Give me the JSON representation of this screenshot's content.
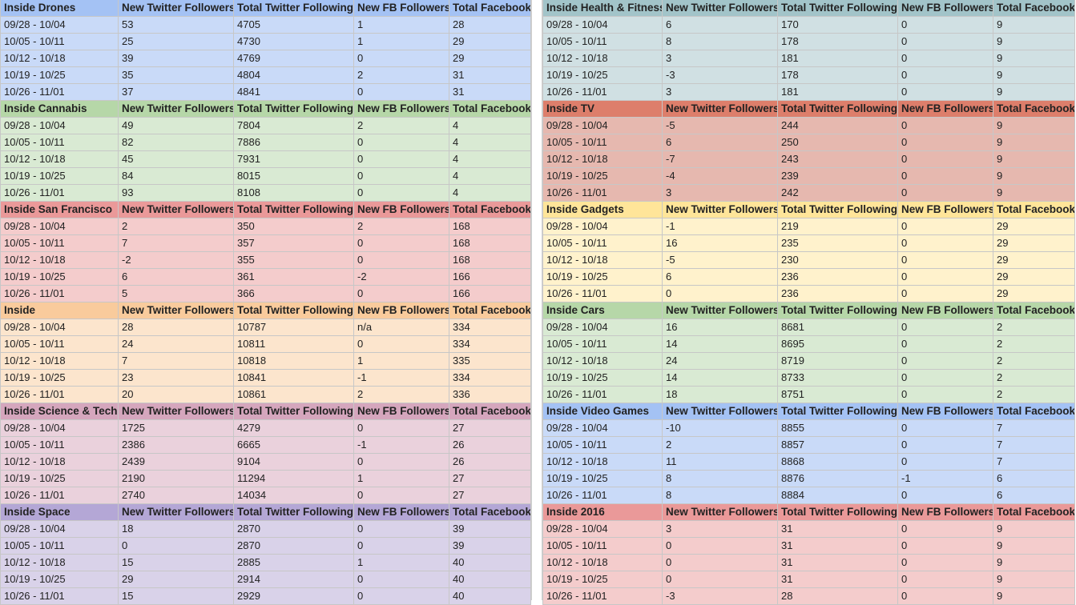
{
  "columns": [
    "New Twitter Followers",
    "Total Twitter Following",
    "New FB Followers",
    "Total Facebook"
  ],
  "left_blocks": [
    {
      "title": "Inside Drones",
      "header_color": "#a4c2f4",
      "row_color": "#c9daf8",
      "rows": [
        [
          "09/28 - 10/04",
          "53",
          "4705",
          "1",
          "28"
        ],
        [
          "10/05 - 10/11",
          "25",
          "4730",
          "1",
          "29"
        ],
        [
          "10/12 - 10/18",
          "39",
          "4769",
          "0",
          "29"
        ],
        [
          "10/19 - 10/25",
          "35",
          "4804",
          "2",
          "31"
        ],
        [
          "10/26 - 11/01",
          "37",
          "4841",
          "0",
          "31"
        ]
      ]
    },
    {
      "title": "Inside Cannabis",
      "header_color": "#b6d7a8",
      "row_color": "#d9ead3",
      "rows": [
        [
          "09/28 - 10/04",
          "49",
          "7804",
          "2",
          "4"
        ],
        [
          "10/05 - 10/11",
          "82",
          "7886",
          "0",
          "4"
        ],
        [
          "10/12 - 10/18",
          "45",
          "7931",
          "0",
          "4"
        ],
        [
          "10/19 - 10/25",
          "84",
          "8015",
          "0",
          "4"
        ],
        [
          "10/26 - 11/01",
          "93",
          "8108",
          "0",
          "4"
        ]
      ]
    },
    {
      "title": "Inside San Francisco",
      "header_color": "#ea9999",
      "row_color": "#f4cccc",
      "rows": [
        [
          "09/28 - 10/04",
          "2",
          "350",
          "2",
          "168"
        ],
        [
          "10/05 - 10/11",
          "7",
          "357",
          "0",
          "168"
        ],
        [
          "10/12 - 10/18",
          "-2",
          "355",
          "0",
          "168"
        ],
        [
          "10/19 - 10/25",
          "6",
          "361",
          "-2",
          "166"
        ],
        [
          "10/26 - 11/01",
          "5",
          "366",
          "0",
          "166"
        ]
      ]
    },
    {
      "title": "Inside",
      "header_color": "#f9cb9c",
      "row_color": "#fce5cd",
      "rows": [
        [
          "09/28 - 10/04",
          "28",
          "10787",
          "n/a",
          "334"
        ],
        [
          "10/05 - 10/11",
          "24",
          "10811",
          "0",
          "334"
        ],
        [
          "10/12 - 10/18",
          "7",
          "10818",
          "1",
          "335"
        ],
        [
          "10/19 - 10/25",
          "23",
          "10841",
          "-1",
          "334"
        ],
        [
          "10/26 - 11/01",
          "20",
          "10861",
          "2",
          "336"
        ]
      ]
    },
    {
      "title": "Inside Science & Tech",
      "header_color": "#d5a6bd",
      "row_color": "#ead1dc",
      "rows": [
        [
          "09/28 - 10/04",
          "1725",
          "4279",
          "0",
          "27"
        ],
        [
          "10/05 - 10/11",
          "2386",
          "6665",
          "-1",
          "26"
        ],
        [
          "10/12 - 10/18",
          "2439",
          "9104",
          "0",
          "26"
        ],
        [
          "10/19 - 10/25",
          "2190",
          "11294",
          "1",
          "27"
        ],
        [
          "10/26 - 11/01",
          "2740",
          "14034",
          "0",
          "27"
        ]
      ]
    },
    {
      "title": "Inside Space",
      "header_color": "#b4a7d6",
      "row_color": "#d9d2e9",
      "rows": [
        [
          "09/28 - 10/04",
          "18",
          "2870",
          "0",
          "39"
        ],
        [
          "10/05 - 10/11",
          "0",
          "2870",
          "0",
          "39"
        ],
        [
          "10/12 - 10/18",
          "15",
          "2885",
          "1",
          "40"
        ],
        [
          "10/19 - 10/25",
          "29",
          "2914",
          "0",
          "40"
        ],
        [
          "10/26 - 11/01",
          "15",
          "2929",
          "0",
          "40"
        ]
      ]
    }
  ],
  "right_blocks": [
    {
      "title": "Inside Health & Fitness",
      "header_color": "#a2c4c9",
      "row_color": "#d0e0e3",
      "rows": [
        [
          "09/28 - 10/04",
          "6",
          "170",
          "0",
          "9"
        ],
        [
          "10/05 - 10/11",
          "8",
          "178",
          "0",
          "9"
        ],
        [
          "10/12 - 10/18",
          "3",
          "181",
          "0",
          "9"
        ],
        [
          "10/19 - 10/25",
          "-3",
          "178",
          "0",
          "9"
        ],
        [
          "10/26 - 11/01",
          "3",
          "181",
          "0",
          "9"
        ]
      ]
    },
    {
      "title": "Inside TV",
      "header_color": "#dd7e6b",
      "row_color": "#e6b8af",
      "rows": [
        [
          "09/28 - 10/04",
          "-5",
          "244",
          "0",
          "9"
        ],
        [
          "10/05 - 10/11",
          "6",
          "250",
          "0",
          "9"
        ],
        [
          "10/12 - 10/18",
          "-7",
          "243",
          "0",
          "9"
        ],
        [
          "10/19 - 10/25",
          "-4",
          "239",
          "0",
          "9"
        ],
        [
          "10/26 - 11/01",
          "3",
          "242",
          "0",
          "9"
        ]
      ]
    },
    {
      "title": "Inside Gadgets",
      "header_color": "#ffe599",
      "row_color": "#fff2cc",
      "rows": [
        [
          "09/28 - 10/04",
          "-1",
          "219",
          "0",
          "29"
        ],
        [
          "10/05 - 10/11",
          "16",
          "235",
          "0",
          "29"
        ],
        [
          "10/12 - 10/18",
          "-5",
          "230",
          "0",
          "29"
        ],
        [
          "10/19 - 10/25",
          "6",
          "236",
          "0",
          "29"
        ],
        [
          "10/26 - 11/01",
          "0",
          "236",
          "0",
          "29"
        ]
      ]
    },
    {
      "title": "Inside Cars",
      "header_color": "#b6d7a8",
      "row_color": "#d9ead3",
      "rows": [
        [
          "09/28 - 10/04",
          "16",
          "8681",
          "0",
          "2"
        ],
        [
          "10/05 - 10/11",
          "14",
          "8695",
          "0",
          "2"
        ],
        [
          "10/12 - 10/18",
          "24",
          "8719",
          "0",
          "2"
        ],
        [
          "10/19 - 10/25",
          "14",
          "8733",
          "0",
          "2"
        ],
        [
          "10/26 - 11/01",
          "18",
          "8751",
          "0",
          "2"
        ]
      ]
    },
    {
      "title": "Inside Video Games",
      "header_color": "#a4c2f4",
      "row_color": "#c9daf8",
      "rows": [
        [
          "09/28 - 10/04",
          "-10",
          "8855",
          "0",
          "7"
        ],
        [
          "10/05 - 10/11",
          "2",
          "8857",
          "0",
          "7"
        ],
        [
          "10/12 - 10/18",
          "11",
          "8868",
          "0",
          "7"
        ],
        [
          "10/19 - 10/25",
          "8",
          "8876",
          "-1",
          "6"
        ],
        [
          "10/26 - 11/01",
          "8",
          "8884",
          "0",
          "6"
        ]
      ]
    },
    {
      "title": "Inside 2016",
      "header_color": "#ea9999",
      "row_color": "#f4cccc",
      "rows": [
        [
          "09/28 - 10/04",
          "3",
          "31",
          "0",
          "9"
        ],
        [
          "10/05 - 10/11",
          "0",
          "31",
          "0",
          "9"
        ],
        [
          "10/12 - 10/18",
          "0",
          "31",
          "0",
          "9"
        ],
        [
          "10/19 - 10/25",
          "0",
          "31",
          "0",
          "9"
        ],
        [
          "10/26 - 11/01",
          "-3",
          "28",
          "0",
          "9"
        ]
      ]
    }
  ]
}
